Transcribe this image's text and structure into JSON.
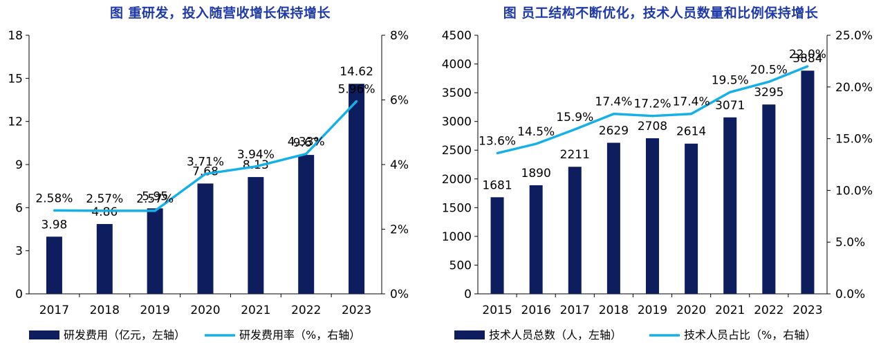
{
  "colors": {
    "bar": "#0d1d5e",
    "line": "#14b0e8",
    "title": "#1f3aa8"
  },
  "chart_data": [
    {
      "type": "bar",
      "title": "图 重研发，投入随营收增长保持增长",
      "categories": [
        "2017",
        "2018",
        "2019",
        "2020",
        "2021",
        "2022",
        "2023"
      ],
      "series": [
        {
          "name": "研发费用（亿元，左轴）",
          "type": "bar",
          "axis": "left",
          "values": [
            3.98,
            4.86,
            5.95,
            7.68,
            8.13,
            9.67,
            14.62
          ],
          "labels": [
            "3.98",
            "4.86",
            "5.95",
            "7.68",
            "8.13",
            "9.67",
            "14.62"
          ]
        },
        {
          "name": "研发费用率（%，右轴）",
          "type": "line",
          "axis": "right",
          "values": [
            2.58,
            2.57,
            2.57,
            3.71,
            3.94,
            4.33,
            5.96
          ],
          "labels": [
            "2.58%",
            "2.57%",
            "2.57%",
            "3.71%",
            "3.94%",
            "4.33%",
            "5.96%"
          ]
        }
      ],
      "ylim_left": [
        0,
        18
      ],
      "yticks_left": [
        "0",
        "3",
        "6",
        "9",
        "12",
        "15",
        "18"
      ],
      "ylim_right": [
        0,
        8
      ],
      "yticks_right": [
        "0%",
        "2%",
        "4%",
        "6%",
        "8%"
      ],
      "grid": false,
      "legend": "bottom"
    },
    {
      "type": "bar",
      "title": "图 员工结构不断优化，技术人员数量和比例保持增长",
      "categories": [
        "2015",
        "2016",
        "2017",
        "2018",
        "2019",
        "2020",
        "2021",
        "2022",
        "2023"
      ],
      "series": [
        {
          "name": "技术人员总数（人，左轴）",
          "type": "bar",
          "axis": "left",
          "values": [
            1681,
            1890,
            2211,
            2629,
            2708,
            2614,
            3071,
            3295,
            3884
          ],
          "labels": [
            "1681",
            "1890",
            "2211",
            "2629",
            "2708",
            "2614",
            "3071",
            "3295",
            "3884"
          ]
        },
        {
          "name": "技术人员占比（%，右轴）",
          "type": "line",
          "axis": "right",
          "values": [
            13.6,
            14.5,
            15.9,
            17.4,
            17.2,
            17.4,
            19.5,
            20.5,
            22.0
          ],
          "labels": [
            "13.6%",
            "14.5%",
            "15.9%",
            "17.4%",
            "17.2%",
            "17.4%",
            "19.5%",
            "20.5%",
            "22.0%"
          ]
        }
      ],
      "ylim_left": [
        0,
        4500
      ],
      "yticks_left": [
        "0",
        "500",
        "1000",
        "1500",
        "2000",
        "2500",
        "3000",
        "3500",
        "4000",
        "4500"
      ],
      "ylim_right": [
        0,
        25
      ],
      "yticks_right": [
        "0.0%",
        "5.0%",
        "10.0%",
        "15.0%",
        "20.0%",
        "25.0%"
      ],
      "grid": false,
      "legend": "bottom"
    }
  ]
}
